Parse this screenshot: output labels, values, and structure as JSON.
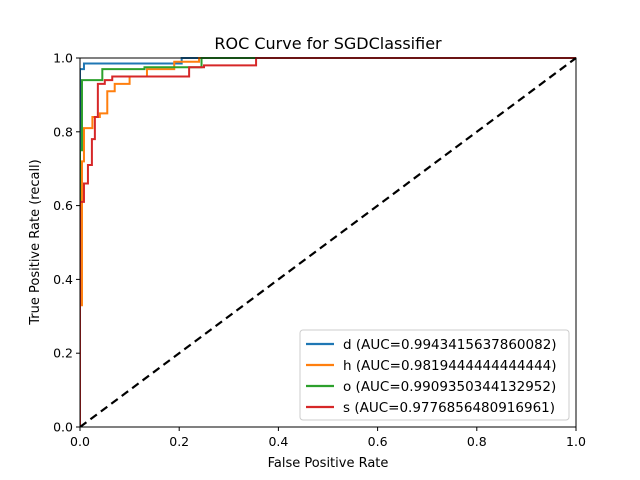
{
  "chart_data": {
    "type": "line",
    "title": "ROC Curve for SGDClassifier",
    "xlabel": "False Positive Rate",
    "ylabel": "True Positive Rate (recall)",
    "xlim": [
      0,
      1
    ],
    "ylim": [
      0,
      1
    ],
    "xticks": [
      0.0,
      0.2,
      0.4,
      0.6,
      0.8,
      1.0
    ],
    "yticks": [
      0.0,
      0.2,
      0.4,
      0.6,
      0.8,
      1.0
    ],
    "xtick_labels": [
      "0.0",
      "0.2",
      "0.4",
      "0.6",
      "0.8",
      "1.0"
    ],
    "ytick_labels": [
      "0.0",
      "0.2",
      "0.4",
      "0.6",
      "0.8",
      "1.0"
    ],
    "grid": false,
    "legend_position": "bottom-right",
    "series": [
      {
        "name": "d (AUC=0.9943415637860082)",
        "color": "#1f77b4",
        "x": [
          0,
          0,
          0.008,
          0.008,
          0.205,
          0.205,
          1
        ],
        "y": [
          0,
          0.97,
          0.97,
          0.985,
          0.985,
          1,
          1
        ]
      },
      {
        "name": "h (AUC=0.9819444444444444)",
        "color": "#ff7f0e",
        "x": [
          0,
          0,
          0.004,
          0.004,
          0.008,
          0.008,
          0.025,
          0.025,
          0.04,
          0.04,
          0.055,
          0.055,
          0.07,
          0.07,
          0.1,
          0.1,
          0.135,
          0.135,
          0.19,
          0.19,
          0.24,
          0.24,
          1
        ],
        "y": [
          0,
          0.33,
          0.33,
          0.72,
          0.72,
          0.81,
          0.81,
          0.84,
          0.84,
          0.85,
          0.85,
          0.91,
          0.91,
          0.93,
          0.93,
          0.95,
          0.95,
          0.97,
          0.97,
          0.99,
          0.99,
          1,
          1
        ]
      },
      {
        "name": "o (AUC=0.9909350344132952)",
        "color": "#2ca02c",
        "x": [
          0,
          0,
          0.004,
          0.004,
          0.045,
          0.045,
          0.13,
          0.13,
          0.245,
          0.245,
          1
        ],
        "y": [
          0,
          0.75,
          0.75,
          0.94,
          0.94,
          0.97,
          0.97,
          0.975,
          0.975,
          1,
          1
        ]
      },
      {
        "name": "s (AUC=0.9776856480916961)",
        "color": "#d62728",
        "x": [
          0,
          0,
          0.008,
          0.008,
          0.016,
          0.016,
          0.024,
          0.024,
          0.03,
          0.03,
          0.036,
          0.036,
          0.05,
          0.05,
          0.065,
          0.065,
          0.1,
          0.1,
          0.22,
          0.22,
          0.25,
          0.25,
          0.355,
          0.355,
          1
        ],
        "y": [
          0,
          0.61,
          0.61,
          0.66,
          0.66,
          0.71,
          0.71,
          0.78,
          0.78,
          0.84,
          0.84,
          0.93,
          0.93,
          0.94,
          0.94,
          0.95,
          0.95,
          0.95,
          0.95,
          0.975,
          0.975,
          0.98,
          0.98,
          1,
          1
        ]
      }
    ],
    "reference_line": {
      "x": [
        0,
        1
      ],
      "y": [
        0,
        1
      ],
      "color": "#000000",
      "style": "dashed"
    }
  }
}
